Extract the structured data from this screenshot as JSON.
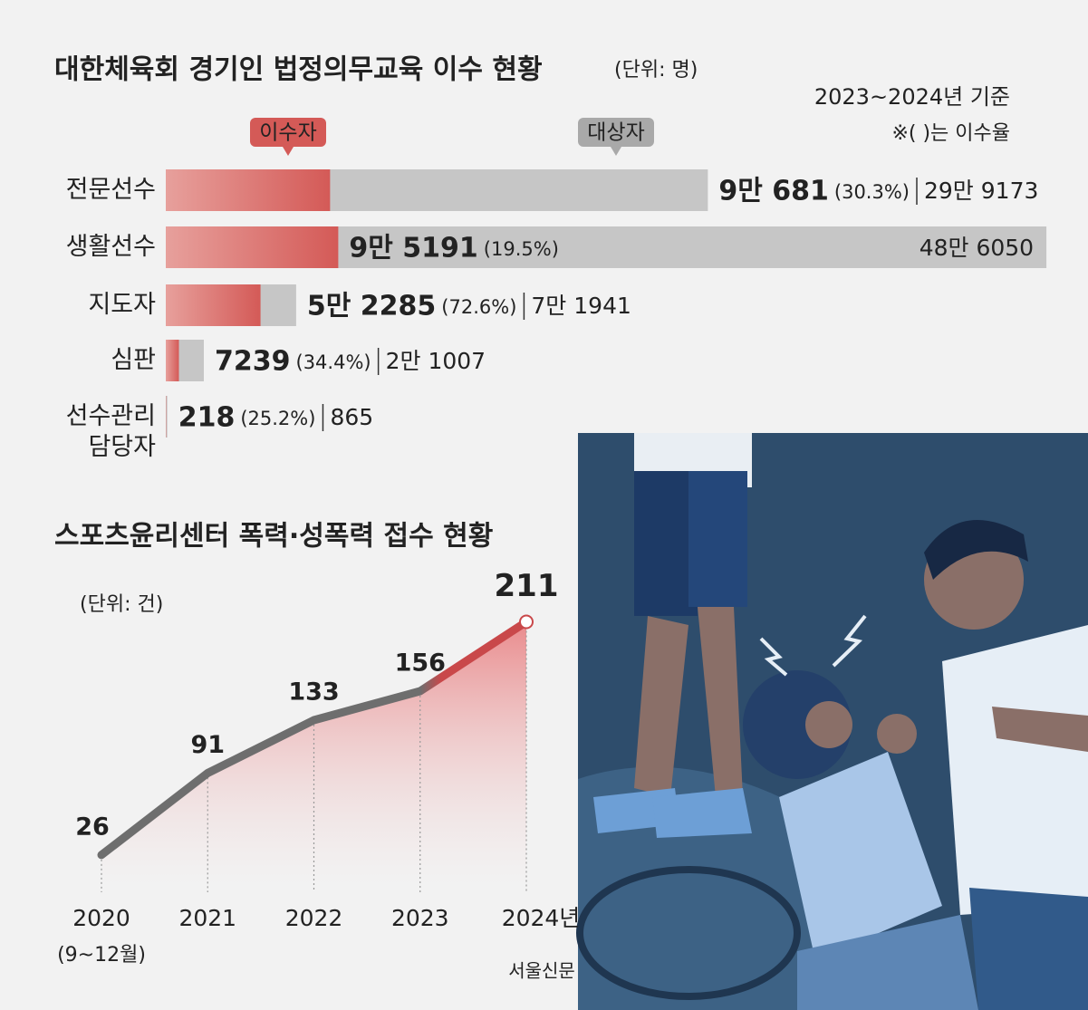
{
  "chart_data": [
    {
      "type": "hbar",
      "title": "대한체육회 경기인 법정의무교육 이수 현황",
      "unit": "(단위: 명)",
      "notes": [
        "2023~2024년 기준",
        "※(  )는 이수율"
      ],
      "categories": [
        "전문선수",
        "생활선수",
        "지도자",
        "심판",
        "선수관리 담당자"
      ],
      "xlim": [
        0,
        500000
      ],
      "series": [
        {
          "name": "이수자",
          "color": "#d9635f",
          "values": [
            90681,
            95191,
            52285,
            7239,
            218
          ],
          "value_labels": [
            "9만 681",
            "9만 5191",
            "5만 2285",
            "7239",
            "218"
          ]
        },
        {
          "name": "대상자",
          "color": "#c6c6c6",
          "values": [
            299173,
            486050,
            71941,
            21007,
            865
          ],
          "value_labels": [
            "29만 9173",
            "48만 6050",
            "7만 1941",
            "2만 1007",
            "865"
          ]
        }
      ],
      "rates": {
        "values": [
          30.3,
          19.5,
          72.6,
          34.4,
          25.2
        ],
        "value_labels": [
          "(30.3%)",
          "(19.5%)",
          "(72.6%)",
          "(34.4%)",
          "(25.2%)"
        ]
      }
    },
    {
      "type": "line",
      "title": "스포츠윤리센터 폭력·성폭력 접수 현황",
      "unit": "(단위: 건)",
      "categories": [
        "2020",
        "2021",
        "2022",
        "2023",
        "2024년"
      ],
      "x_note": "(9~12월)",
      "values": [
        26,
        91,
        133,
        156,
        211
      ],
      "ylim": [
        0,
        220
      ],
      "color": "#6e6e6e",
      "end_color": "#c9484a",
      "area_color": "#e8787a"
    }
  ],
  "watermark": "서울신문"
}
